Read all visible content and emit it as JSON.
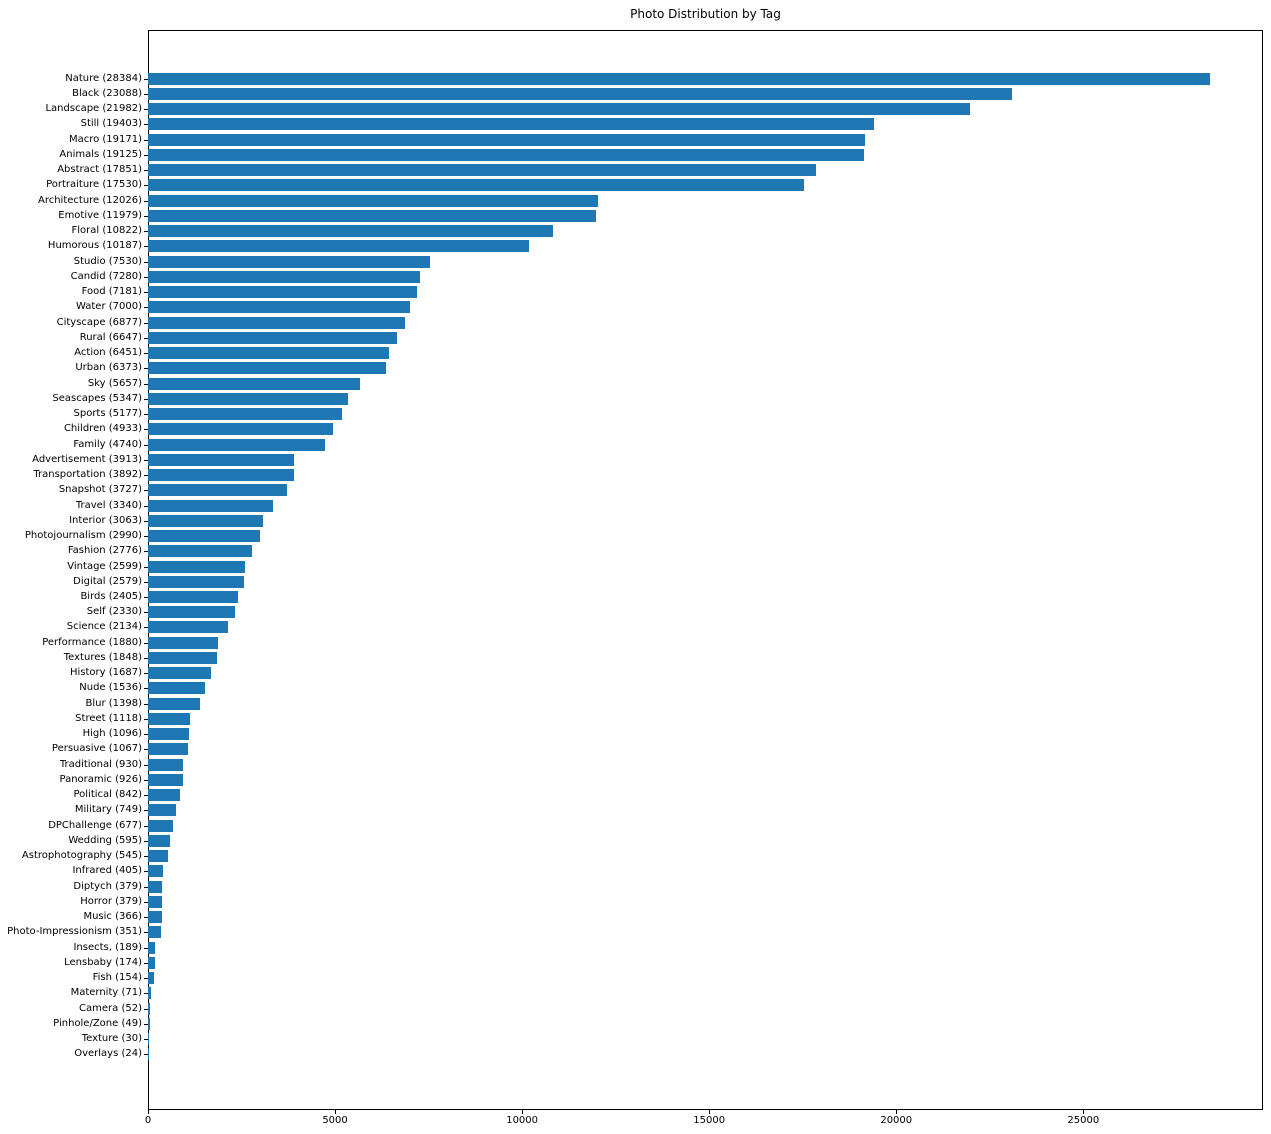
{
  "chart_data": {
    "type": "bar",
    "orientation": "horizontal",
    "title": "Photo Distribution by Tag",
    "xlabel": "",
    "ylabel": "",
    "grid": false,
    "legend": null,
    "bar_color": "#1f77b4",
    "xlim": [
      0,
      29803
    ],
    "x_ticks": [
      0,
      5000,
      10000,
      15000,
      20000,
      25000
    ],
    "x_tick_labels": [
      "0",
      "5000",
      "10000",
      "15000",
      "20000",
      "25000"
    ],
    "label_format": "{category} ({value})",
    "categories": [
      "Nature",
      "Black",
      "Landscape",
      "Still",
      "Macro",
      "Animals",
      "Abstract",
      "Portraiture",
      "Architecture",
      "Emotive",
      "Floral",
      "Humorous",
      "Studio",
      "Candid",
      "Food",
      "Water",
      "Cityscape",
      "Rural",
      "Action",
      "Urban",
      "Sky",
      "Seascapes",
      "Sports",
      "Children",
      "Family",
      "Advertisement",
      "Transportation",
      "Snapshot",
      "Travel",
      "Interior",
      "Photojournalism",
      "Fashion",
      "Vintage",
      "Digital",
      "Birds",
      "Self",
      "Science",
      "Performance",
      "Textures",
      "History",
      "Nude",
      "Blur",
      "Street",
      "High",
      "Persuasive",
      "Traditional",
      "Panoramic",
      "Political",
      "Military",
      "DPChallenge",
      "Wedding",
      "Astrophotography",
      "Infrared",
      "Diptych",
      "Horror",
      "Music",
      "Photo-Impressionism",
      "Insects,",
      "Lensbaby",
      "Fish",
      "Maternity",
      "Camera",
      "Pinhole/Zone",
      "Texture",
      "Overlays"
    ],
    "values": [
      28384,
      23088,
      21982,
      19403,
      19171,
      19125,
      17851,
      17530,
      12026,
      11979,
      10822,
      10187,
      7530,
      7280,
      7181,
      7000,
      6877,
      6647,
      6451,
      6373,
      5657,
      5347,
      5177,
      4933,
      4740,
      3913,
      3892,
      3727,
      3340,
      3063,
      2990,
      2776,
      2599,
      2579,
      2405,
      2330,
      2134,
      1880,
      1848,
      1687,
      1536,
      1398,
      1118,
      1096,
      1067,
      930,
      926,
      842,
      749,
      677,
      595,
      545,
      405,
      379,
      379,
      366,
      351,
      189,
      174,
      154,
      71,
      52,
      49,
      30,
      24
    ]
  }
}
